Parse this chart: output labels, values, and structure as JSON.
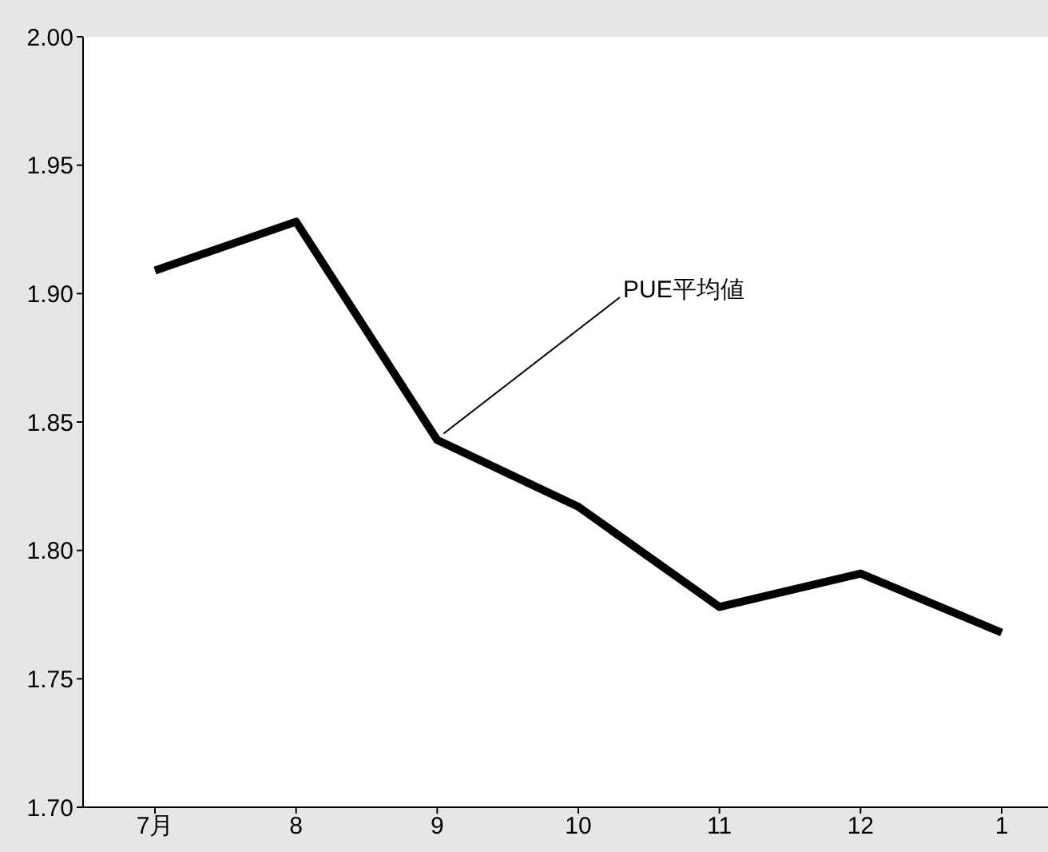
{
  "chart_data": {
    "type": "line",
    "categories": [
      "7月",
      "8",
      "9",
      "10",
      "11",
      "12",
      "1"
    ],
    "series": [
      {
        "color": "#000000",
        "values": [
          1.909,
          1.928,
          1.843,
          1.817,
          1.778,
          1.791,
          1.768
        ]
      }
    ],
    "ylim": [
      1.7,
      2.0
    ],
    "yticks": [
      {
        "value": 1.7,
        "label": "1.70"
      },
      {
        "value": 1.75,
        "label": "1.75"
      },
      {
        "value": 1.8,
        "label": "1.80"
      },
      {
        "value": 1.85,
        "label": "1.85"
      },
      {
        "value": 1.9,
        "label": "1.90"
      },
      {
        "value": 1.95,
        "label": "1.95"
      },
      {
        "value": 2.0,
        "label": "2.00"
      }
    ],
    "grid": false,
    "legend": false,
    "marker": "none",
    "line_style": "solid",
    "annotations": [
      {
        "text": "PUE平均値",
        "x": "9",
        "y": 1.843
      }
    ]
  }
}
